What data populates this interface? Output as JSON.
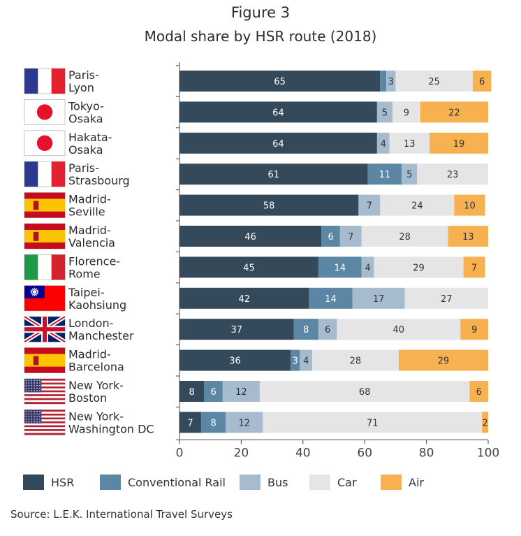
{
  "figure_label": "Figure 3",
  "source": "Source: L.E.K. International Travel Surveys",
  "chart_data": {
    "type": "bar",
    "orientation": "horizontal",
    "stacked": true,
    "title": "Modal share by HSR route (2018)",
    "xlabel": "",
    "ylabel": "",
    "xlim": [
      0,
      100
    ],
    "x_ticks": [
      0,
      20,
      40,
      60,
      80,
      100
    ],
    "legend_position": "bottom",
    "series_colors": {
      "HSR": "#34495a",
      "Conventional Rail": "#5b87a5",
      "Bus": "#a6bcce",
      "Car": "#e5e5e5",
      "Air": "#f7b150"
    },
    "categories": [
      {
        "line1": "Paris-",
        "line2": "Lyon",
        "flag": "france"
      },
      {
        "line1": "Tokyo-",
        "line2": "Osaka",
        "flag": "japan"
      },
      {
        "line1": "Hakata-",
        "line2": "Osaka",
        "flag": "japan"
      },
      {
        "line1": "Paris-",
        "line2": "Strasbourg",
        "flag": "france"
      },
      {
        "line1": "Madrid-",
        "line2": "Seville",
        "flag": "spain"
      },
      {
        "line1": "Madrid-",
        "line2": "Valencia",
        "flag": "spain"
      },
      {
        "line1": "Florence-",
        "line2": "Rome",
        "flag": "italy"
      },
      {
        "line1": "Taipei-",
        "line2": "Kaohsiung",
        "flag": "taiwan"
      },
      {
        "line1": "London-",
        "line2": "Manchester",
        "flag": "uk"
      },
      {
        "line1": "Madrid-",
        "line2": "Barcelona",
        "flag": "spain"
      },
      {
        "line1": "New York-",
        "line2": "Boston",
        "flag": "usa"
      },
      {
        "line1": "New York-",
        "line2": "Washington DC",
        "flag": "usa"
      }
    ],
    "series": [
      {
        "name": "HSR",
        "values": [
          65,
          64,
          64,
          61,
          58,
          46,
          45,
          42,
          37,
          36,
          8,
          7
        ]
      },
      {
        "name": "Conventional Rail",
        "values": [
          2,
          0,
          0,
          11,
          0,
          6,
          14,
          14,
          8,
          3,
          6,
          8
        ]
      },
      {
        "name": "Bus",
        "values": [
          3,
          5,
          4,
          5,
          7,
          7,
          4,
          17,
          6,
          4,
          12,
          12
        ]
      },
      {
        "name": "Car",
        "values": [
          25,
          9,
          13,
          23,
          24,
          28,
          29,
          27,
          40,
          28,
          68,
          71
        ]
      },
      {
        "name": "Air",
        "values": [
          6,
          22,
          19,
          0,
          10,
          13,
          7,
          0,
          9,
          29,
          6,
          2
        ]
      }
    ],
    "data_labels": [
      [
        "65",
        "",
        "3",
        "25",
        "6"
      ],
      [
        "64",
        "",
        "5",
        "9",
        "22"
      ],
      [
        "64",
        "",
        "4",
        "13",
        "19"
      ],
      [
        "61",
        "11",
        "5",
        "23",
        ""
      ],
      [
        "58",
        "",
        "7",
        "24",
        "10"
      ],
      [
        "46",
        "6",
        "7",
        "28",
        "13"
      ],
      [
        "45",
        "14",
        "4",
        "29",
        "7"
      ],
      [
        "42",
        "14",
        "17",
        "27",
        ""
      ],
      [
        "37",
        "8",
        "6",
        "40",
        "9"
      ],
      [
        "36",
        "3",
        "4",
        "28",
        "29"
      ],
      [
        "8",
        "6",
        "12",
        "68",
        "6"
      ],
      [
        "7",
        "8",
        "12",
        "71",
        "2"
      ]
    ]
  }
}
